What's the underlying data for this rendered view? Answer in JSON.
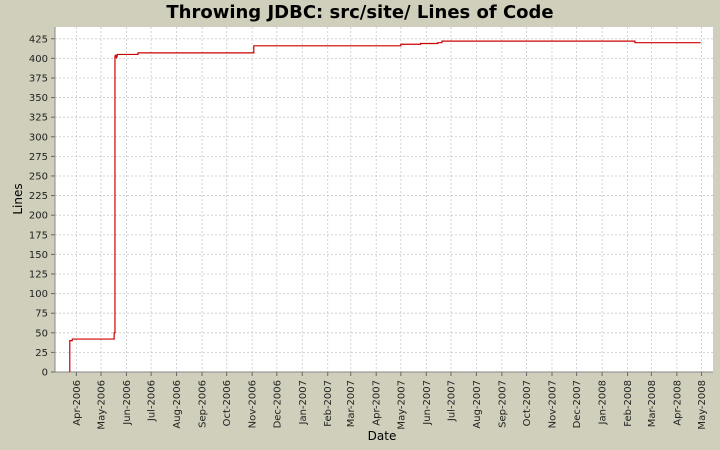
{
  "chart_data": {
    "type": "line",
    "title": "Throwing JDBC: src/site/ Lines of Code",
    "xlabel": "Date",
    "ylabel": "Lines",
    "ylim": [
      0,
      440
    ],
    "xlim": [
      "2006-03-06",
      "2008-05-15"
    ],
    "grid": true,
    "series": [
      {
        "color": "#cc0000",
        "points": [
          [
            "2006-03-24",
            0
          ],
          [
            "2006-03-24",
            40
          ],
          [
            "2006-03-27",
            40
          ],
          [
            "2006-03-27",
            42
          ],
          [
            "2006-05-17",
            42
          ],
          [
            "2006-05-17",
            50
          ],
          [
            "2006-05-18",
            50
          ],
          [
            "2006-05-18",
            403
          ],
          [
            "2006-05-19",
            403
          ],
          [
            "2006-05-19",
            405
          ],
          [
            "2006-05-20",
            400
          ],
          [
            "2006-05-21",
            405
          ],
          [
            "2006-06-15",
            405
          ],
          [
            "2006-06-15",
            407
          ],
          [
            "2006-11-03",
            407
          ],
          [
            "2006-11-03",
            416
          ],
          [
            "2007-05-01",
            416
          ],
          [
            "2007-05-01",
            418
          ],
          [
            "2007-05-25",
            418
          ],
          [
            "2007-05-25",
            419
          ],
          [
            "2007-06-15",
            419
          ],
          [
            "2007-06-15",
            420
          ],
          [
            "2007-06-20",
            420
          ],
          [
            "2007-06-20",
            422
          ],
          [
            "2008-02-10",
            422
          ],
          [
            "2008-02-10",
            420
          ],
          [
            "2008-04-30",
            420
          ]
        ]
      }
    ],
    "y_ticks": [
      0,
      25,
      50,
      75,
      100,
      125,
      150,
      175,
      200,
      225,
      250,
      275,
      300,
      325,
      350,
      375,
      400,
      425
    ],
    "x_ticks": [
      {
        "date": "2006-04-01",
        "label": "Apr-2006"
      },
      {
        "date": "2006-05-01",
        "label": "May-2006"
      },
      {
        "date": "2006-06-01",
        "label": "Jun-2006"
      },
      {
        "date": "2006-07-01",
        "label": "Jul-2006"
      },
      {
        "date": "2006-08-01",
        "label": "Aug-2006"
      },
      {
        "date": "2006-09-01",
        "label": "Sep-2006"
      },
      {
        "date": "2006-10-01",
        "label": "Oct-2006"
      },
      {
        "date": "2006-11-01",
        "label": "Nov-2006"
      },
      {
        "date": "2006-12-01",
        "label": "Dec-2006"
      },
      {
        "date": "2007-01-01",
        "label": "Jan-2007"
      },
      {
        "date": "2007-02-01",
        "label": "Feb-2007"
      },
      {
        "date": "2007-03-01",
        "label": "Mar-2007"
      },
      {
        "date": "2007-04-01",
        "label": "Apr-2007"
      },
      {
        "date": "2007-05-01",
        "label": "May-2007"
      },
      {
        "date": "2007-06-01",
        "label": "Jun-2007"
      },
      {
        "date": "2007-07-01",
        "label": "Jul-2007"
      },
      {
        "date": "2007-08-01",
        "label": "Aug-2007"
      },
      {
        "date": "2007-09-01",
        "label": "Sep-2007"
      },
      {
        "date": "2007-10-01",
        "label": "Oct-2007"
      },
      {
        "date": "2007-11-01",
        "label": "Nov-2007"
      },
      {
        "date": "2007-12-01",
        "label": "Dec-2007"
      },
      {
        "date": "2008-01-01",
        "label": "Jan-2008"
      },
      {
        "date": "2008-02-01",
        "label": "Feb-2008"
      },
      {
        "date": "2008-03-01",
        "label": "Mar-2008"
      },
      {
        "date": "2008-04-01",
        "label": "Apr-2008"
      },
      {
        "date": "2008-05-01",
        "label": "May-2008"
      }
    ]
  },
  "colors": {
    "background": "#d0cfbb",
    "plot_background": "#ffffff",
    "grid": "#c8c8c8",
    "series": "#cc0000"
  }
}
